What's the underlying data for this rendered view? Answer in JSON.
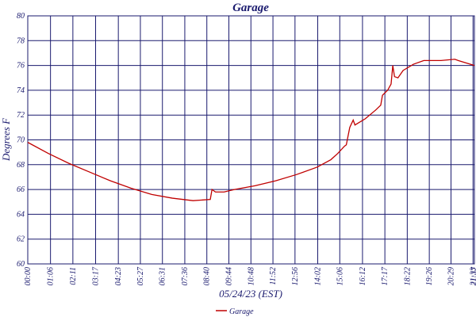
{
  "chart_data": {
    "type": "line",
    "title": "Garage",
    "x_label": "05/24/23 (EST)",
    "y_label": "Degrees F",
    "x": [
      0,
      60,
      120,
      180,
      240,
      300,
      360,
      420,
      480,
      530,
      535,
      545,
      570,
      600,
      660,
      720,
      780,
      840,
      880,
      900,
      920,
      925,
      935,
      945,
      950,
      980,
      1010,
      1025,
      1030,
      1045,
      1055,
      1060,
      1065,
      1075,
      1090,
      1120,
      1150,
      1200,
      1240,
      1250,
      1297
    ],
    "series": [
      {
        "name": "Garage",
        "color": "#c00000",
        "values": [
          69.8,
          68.9,
          68.1,
          67.4,
          66.7,
          66.1,
          65.6,
          65.3,
          65.1,
          65.2,
          66.0,
          65.8,
          65.8,
          66.0,
          66.3,
          66.7,
          67.2,
          67.8,
          68.4,
          68.9,
          69.5,
          69.6,
          71.0,
          71.6,
          71.2,
          71.7,
          72.4,
          72.8,
          73.6,
          74.0,
          74.5,
          76.0,
          75.1,
          75.0,
          75.6,
          76.1,
          76.4,
          76.4,
          76.5,
          76.4,
          76.0
        ]
      }
    ],
    "xlim": [
      0,
      1297
    ],
    "xticks": [
      {
        "value": 0,
        "label": "00:00"
      },
      {
        "value": 66,
        "label": "01:06"
      },
      {
        "value": 131,
        "label": "02:11"
      },
      {
        "value": 197,
        "label": "03:17"
      },
      {
        "value": 263,
        "label": "04:23"
      },
      {
        "value": 327,
        "label": "05:27"
      },
      {
        "value": 391,
        "label": "06:31"
      },
      {
        "value": 456,
        "label": "07:36"
      },
      {
        "value": 520,
        "label": "08:40"
      },
      {
        "value": 584,
        "label": "09:44"
      },
      {
        "value": 648,
        "label": "10:48"
      },
      {
        "value": 712,
        "label": "11:52"
      },
      {
        "value": 776,
        "label": "12:56"
      },
      {
        "value": 842,
        "label": "14:02"
      },
      {
        "value": 906,
        "label": "15:06"
      },
      {
        "value": 972,
        "label": "16:12"
      },
      {
        "value": 1037,
        "label": "17:17"
      },
      {
        "value": 1102,
        "label": "18:22"
      },
      {
        "value": 1166,
        "label": "19:26"
      },
      {
        "value": 1229,
        "label": "20:29"
      },
      {
        "value": 1293,
        "label": "21:33"
      },
      {
        "value": 1297,
        "label": "21:37"
      }
    ],
    "ylim": [
      60,
      80
    ],
    "yticks": [
      60,
      62,
      64,
      66,
      68,
      70,
      72,
      74,
      76,
      78,
      80
    ],
    "grid": true
  }
}
